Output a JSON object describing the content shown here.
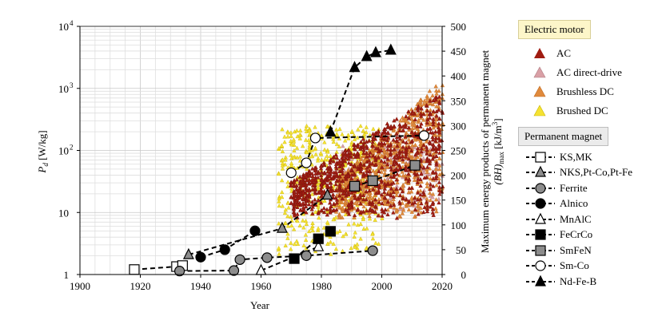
{
  "chart_data": {
    "type": "scatter",
    "xlabel": "Year",
    "ylabel_left_main": "P",
    "ylabel_left_sub": "d",
    "ylabel_left_unit": " [W/kg]",
    "ylabel_right_line1": "Maximum energy products of permanent magnet",
    "ylabel_right_line2_pre": "(BH)",
    "ylabel_right_line2_sub": "max",
    "ylabel_right_line2_unit": " [kJ/m",
    "ylabel_right_line2_sup": "3",
    "ylabel_right_line2_end": "]",
    "xlim": [
      1900,
      2020
    ],
    "x_ticks": [
      "1900",
      "1920",
      "1940",
      "1960",
      "1980",
      "2000",
      "2020"
    ],
    "ylim_left": [
      1,
      10000
    ],
    "y_scale_left": "log",
    "y_ticks_left": [
      "1",
      "10",
      "10",
      "10",
      "10"
    ],
    "y_ticks_left_exponents": [
      "",
      "",
      "2",
      "3",
      "4"
    ],
    "ylim_right": [
      0,
      500
    ],
    "y_ticks_right": [
      "0",
      "50",
      "100",
      "150",
      "200",
      "250",
      "300",
      "350",
      "400",
      "450",
      "500"
    ],
    "grid": true,
    "legend_groups": [
      {
        "title": "Electric motor",
        "entries": [
          {
            "name": "AC",
            "color": "#a01c12"
          },
          {
            "name": "AC direct-drive",
            "color": "#d9a0a6"
          },
          {
            "name": "Brushless DC",
            "color": "#e08a3c"
          },
          {
            "name": "Brushed DC",
            "color": "#f5e232"
          }
        ]
      },
      {
        "title": "Permanent magnet",
        "entries": [
          {
            "name": "KS,MK",
            "marker": "square",
            "fill": "#ffffff"
          },
          {
            "name": "NKS,Pt-Co,Pt-Fe",
            "marker": "triangle",
            "fill": "#8c8c8c"
          },
          {
            "name": "Ferrite",
            "marker": "circle",
            "fill": "#8c8c8c"
          },
          {
            "name": "Alnico",
            "marker": "circle",
            "fill": "#000000"
          },
          {
            "name": "MnAlC",
            "marker": "triangle",
            "fill": "#ffffff"
          },
          {
            "name": "FeCrCo",
            "marker": "square",
            "fill": "#000000"
          },
          {
            "name": "SmFeN",
            "marker": "square",
            "fill": "#8c8c8c"
          },
          {
            "name": "Sm-Co",
            "marker": "circle",
            "fill": "#ffffff"
          },
          {
            "name": "Nd-Fe-B",
            "marker": "triangle",
            "fill": "#000000"
          }
        ]
      }
    ],
    "magnet_series": [
      {
        "name": "KS,MK",
        "points": [
          [
            1918,
            10
          ],
          [
            1932,
            16
          ],
          [
            1934,
            18
          ]
        ]
      },
      {
        "name": "NKS,Pt-Co,Pt-Fe",
        "points": [
          [
            1936,
            40
          ],
          [
            1967,
            93
          ],
          [
            1982,
            160
          ]
        ]
      },
      {
        "name": "Ferrite",
        "points": [
          [
            1933,
            7
          ],
          [
            1951,
            8
          ],
          [
            1953,
            30
          ],
          [
            1962,
            34
          ],
          [
            1975,
            38
          ],
          [
            1997,
            48
          ]
        ]
      },
      {
        "name": "Alnico",
        "points": [
          [
            1940,
            35
          ],
          [
            1948,
            50
          ],
          [
            1958,
            88
          ]
        ]
      },
      {
        "name": "MnAlC",
        "points": [
          [
            1960,
            8
          ],
          [
            1979,
            56
          ]
        ]
      },
      {
        "name": "FeCrCo",
        "points": [
          [
            1971,
            32
          ],
          [
            1979,
            72
          ],
          [
            1983,
            87
          ]
        ]
      },
      {
        "name": "SmFeN",
        "points": [
          [
            1991,
            178
          ],
          [
            1997,
            189
          ],
          [
            2011,
            220
          ]
        ]
      },
      {
        "name": "Sm-Co",
        "points": [
          [
            1970,
            205
          ],
          [
            1975,
            225
          ],
          [
            1978,
            275
          ],
          [
            2014,
            280
          ]
        ]
      },
      {
        "name": "Nd-Fe-B",
        "points": [
          [
            1983,
            287
          ],
          [
            1991,
            417
          ],
          [
            1995,
            439
          ],
          [
            1998,
            447
          ],
          [
            2003,
            452
          ]
        ]
      }
    ],
    "motor_data_ranges": [
      {
        "series": "AC",
        "x_range": [
          1970,
          2020
        ],
        "pd_range": [
          8,
          900
        ]
      },
      {
        "series": "AC direct-drive",
        "x_range": [
          1985,
          2020
        ],
        "pd_range": [
          10,
          120
        ]
      },
      {
        "series": "Brushless DC",
        "x_range": [
          1985,
          2020
        ],
        "pd_range": [
          8,
          1400
        ]
      },
      {
        "series": "Brushed DC",
        "x_range": [
          1966,
          2000
        ],
        "pd_range": [
          2,
          250
        ]
      }
    ]
  }
}
